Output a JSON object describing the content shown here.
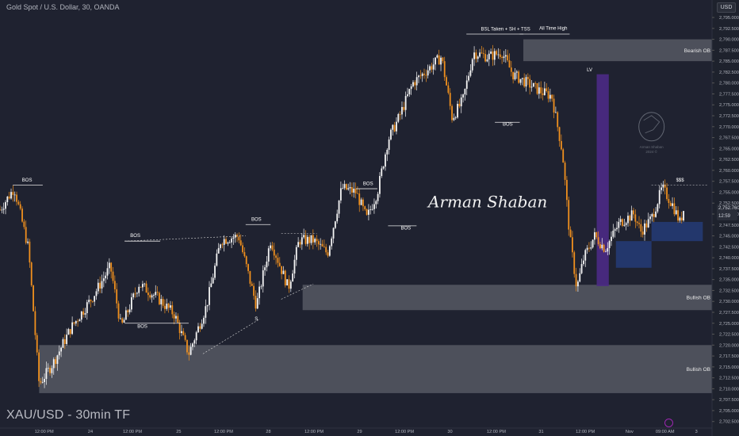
{
  "symbol_header": "Gold Spot / U.S. Dollar, 30, OANDA",
  "currency_badge": "USD",
  "timeframe_label": "XAU/USD - 30min TF",
  "watermark": "Arman Shaban",
  "brain_logo_text": [
    "Arman Shaban",
    "2024 ©"
  ],
  "price_tag": [
    "2,752.760",
    "12:59"
  ],
  "colors": {
    "background": "#1f2230",
    "bull_candle": "#f5f5f5",
    "bear_candle": "#f0901e",
    "ob_zone": "#5d6069",
    "blue_zone": "#233a73",
    "purple_zone": "#4b2a86",
    "axis_text": "#b2b5be"
  },
  "chart_data": {
    "type": "candlestick",
    "y_axis": {
      "side": "right",
      "range": [
        2701,
        2799
      ],
      "ticks": [
        2702.5,
        2705.0,
        2707.5,
        2710.0,
        2712.5,
        2715.0,
        2717.5,
        2720.0,
        2722.5,
        2725.0,
        2727.5,
        2730.0,
        2732.5,
        2735.0,
        2737.5,
        2740.0,
        2742.5,
        2745.0,
        2747.5,
        2750.0,
        2752.5,
        2755.0,
        2757.5,
        2760.0,
        2762.5,
        2765.0,
        2767.5,
        2770.0,
        2772.5,
        2775.0,
        2777.5,
        2780.0,
        2782.5,
        2785.0,
        2787.5,
        2790.0,
        2792.5,
        2795.0
      ],
      "tick_labels": [
        "2,702.500",
        "2,705.000",
        "2,707.500",
        "2,710.000",
        "2,712.500",
        "2,715.000",
        "2,717.500",
        "2,720.000",
        "2,722.500",
        "2,725.000",
        "2,727.500",
        "2,730.000",
        "2,732.500",
        "2,735.000",
        "2,737.500",
        "2,740.000",
        "2,742.500",
        "2,745.000",
        "2,747.500",
        "2,750.000",
        "2,752.500",
        "2,755.000",
        "2,757.500",
        "2,760.000",
        "2,762.500",
        "2,765.000",
        "2,767.500",
        "2,770.000",
        "2,772.500",
        "2,775.000",
        "2,777.500",
        "2,780.000",
        "2,782.500",
        "2,785.000",
        "2,787.500",
        "2,790.000",
        "2,792.500",
        "2,795.000"
      ]
    },
    "x_axis": {
      "labels": [
        "12:00 PM",
        "24",
        "12:00 PM",
        "25",
        "12:00 PM",
        "28",
        "12:00 PM",
        "29",
        "12:00 PM",
        "30",
        "12:00 PM",
        "31",
        "12:00 PM",
        "Nov",
        "09:00 AM",
        "3"
      ],
      "x_fraction": [
        0.062,
        0.127,
        0.186,
        0.251,
        0.314,
        0.377,
        0.441,
        0.505,
        0.568,
        0.632,
        0.697,
        0.76,
        0.822,
        0.884,
        0.934,
        0.978
      ]
    },
    "price_path": [
      [
        0.0,
        2751
      ],
      [
        0.02,
        2756
      ],
      [
        0.04,
        2742
      ],
      [
        0.055,
        2711
      ],
      [
        0.075,
        2716
      ],
      [
        0.1,
        2724
      ],
      [
        0.13,
        2731
      ],
      [
        0.155,
        2738
      ],
      [
        0.17,
        2724
      ],
      [
        0.195,
        2734
      ],
      [
        0.22,
        2731
      ],
      [
        0.245,
        2727
      ],
      [
        0.265,
        2718
      ],
      [
        0.29,
        2729
      ],
      [
        0.31,
        2744
      ],
      [
        0.335,
        2745
      ],
      [
        0.36,
        2729
      ],
      [
        0.38,
        2744
      ],
      [
        0.405,
        2733
      ],
      [
        0.42,
        2744
      ],
      [
        0.44,
        2744
      ],
      [
        0.46,
        2741
      ],
      [
        0.48,
        2756
      ],
      [
        0.5,
        2755
      ],
      [
        0.515,
        2749
      ],
      [
        0.53,
        2755
      ],
      [
        0.545,
        2767
      ],
      [
        0.56,
        2772
      ],
      [
        0.58,
        2780
      ],
      [
        0.6,
        2783
      ],
      [
        0.62,
        2786
      ],
      [
        0.635,
        2772
      ],
      [
        0.65,
        2776
      ],
      [
        0.665,
        2787
      ],
      [
        0.685,
        2786
      ],
      [
        0.705,
        2787
      ],
      [
        0.72,
        2782
      ],
      [
        0.74,
        2780
      ],
      [
        0.76,
        2778
      ],
      [
        0.775,
        2777
      ],
      [
        0.79,
        2764
      ],
      [
        0.8,
        2745
      ],
      [
        0.81,
        2733
      ],
      [
        0.82,
        2740
      ],
      [
        0.835,
        2745
      ],
      [
        0.85,
        2742
      ],
      [
        0.87,
        2748
      ],
      [
        0.89,
        2750
      ],
      [
        0.9,
        2746
      ],
      [
        0.915,
        2749
      ],
      [
        0.93,
        2756
      ],
      [
        0.945,
        2752
      ],
      [
        0.955,
        2748
      ],
      [
        0.96,
        2751
      ]
    ],
    "zones": [
      {
        "label": "Bearish OB",
        "x": [
          0.735,
          1.0
        ],
        "y": [
          2785.0,
          2790.0
        ]
      },
      {
        "label": "Bullish OB",
        "x": [
          0.425,
          1.0
        ],
        "y": [
          2728.0,
          2733.8
        ]
      },
      {
        "label": "Bullish OB",
        "x": [
          0.055,
          1.0
        ],
        "y": [
          2709.0,
          2720.0
        ]
      },
      {
        "label": "",
        "x": [
          0.915,
          0.987
        ],
        "y": [
          2743.8,
          2748.2
        ]
      },
      {
        "label": "",
        "x": [
          0.865,
          0.915
        ],
        "y": [
          2737.7,
          2743.8
        ]
      },
      {
        "label": "",
        "x": [
          0.838,
          0.855
        ],
        "y": [
          2733.5,
          2782.0
        ]
      }
    ],
    "annotations": [
      "BOS",
      "BOS",
      "BOS",
      "BOS",
      "BOS",
      "BOS",
      "BOS",
      "BSL Taken + SH + TSS",
      "All Time High",
      "LV",
      "$$$",
      "S"
    ]
  }
}
